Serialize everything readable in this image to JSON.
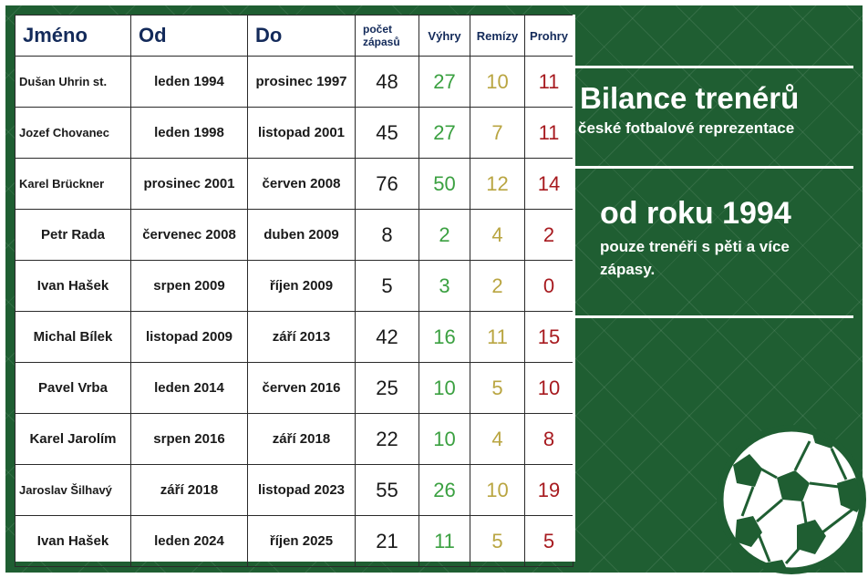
{
  "headers": {
    "name": "Jméno",
    "from": "Od",
    "to": "Do",
    "matches": "počet zápasů",
    "wins": "Výhry",
    "draws": "Remízy",
    "losses": "Prohry"
  },
  "rows": [
    {
      "name": "Dušan Uhrin st.",
      "from": "leden 1994",
      "to": "prosinec 1997",
      "matches": "48",
      "wins": "27",
      "draws": "10",
      "losses": "11"
    },
    {
      "name": "Jozef Chovanec",
      "from": "leden 1998",
      "to": "listopad 2001",
      "matches": "45",
      "wins": "27",
      "draws": "7",
      "losses": "11"
    },
    {
      "name": "Karel Brückner",
      "from": "prosinec 2001",
      "to": "červen 2008",
      "matches": "76",
      "wins": "50",
      "draws": "12",
      "losses": "14"
    },
    {
      "name": "Petr Rada",
      "from": "červenec 2008",
      "to": "duben 2009",
      "matches": "8",
      "wins": "2",
      "draws": "4",
      "losses": "2"
    },
    {
      "name": "Ivan Hašek",
      "from": "srpen 2009",
      "to": "říjen 2009",
      "matches": "5",
      "wins": "3",
      "draws": "2",
      "losses": "0"
    },
    {
      "name": "Michal Bílek",
      "from": "listopad 2009",
      "to": "září 2013",
      "matches": "42",
      "wins": "16",
      "draws": "11",
      "losses": "15"
    },
    {
      "name": "Pavel Vrba",
      "from": "leden 2014",
      "to": "červen 2016",
      "matches": "25",
      "wins": "10",
      "draws": "5",
      "losses": "10"
    },
    {
      "name": "Karel Jarolím",
      "from": "srpen 2016",
      "to": "září 2018",
      "matches": "22",
      "wins": "10",
      "draws": "4",
      "losses": "8"
    },
    {
      "name": "Jaroslav Šilhavý",
      "from": "září 2018",
      "to": "listopad 2023",
      "matches": "55",
      "wins": "26",
      "draws": "10",
      "losses": "19"
    },
    {
      "name": "Ivan Hašek",
      "from": "leden 2024",
      "to": "říjen 2025",
      "matches": "21",
      "wins": "11",
      "draws": "5",
      "losses": "5"
    }
  ],
  "panel": {
    "title": "Bilance trenérů",
    "subtitle": "české fotbalové reprezentace",
    "since": "od roku 1994",
    "note": "pouze trenéři s pěti a více zápasy."
  },
  "colors": {
    "background": "#1f5e32",
    "header_text": "#132a5a",
    "wins": "#3aa040",
    "draws": "#b9a541",
    "losses": "#a71a1f"
  },
  "icons": [
    "soccer-ball-icon"
  ]
}
